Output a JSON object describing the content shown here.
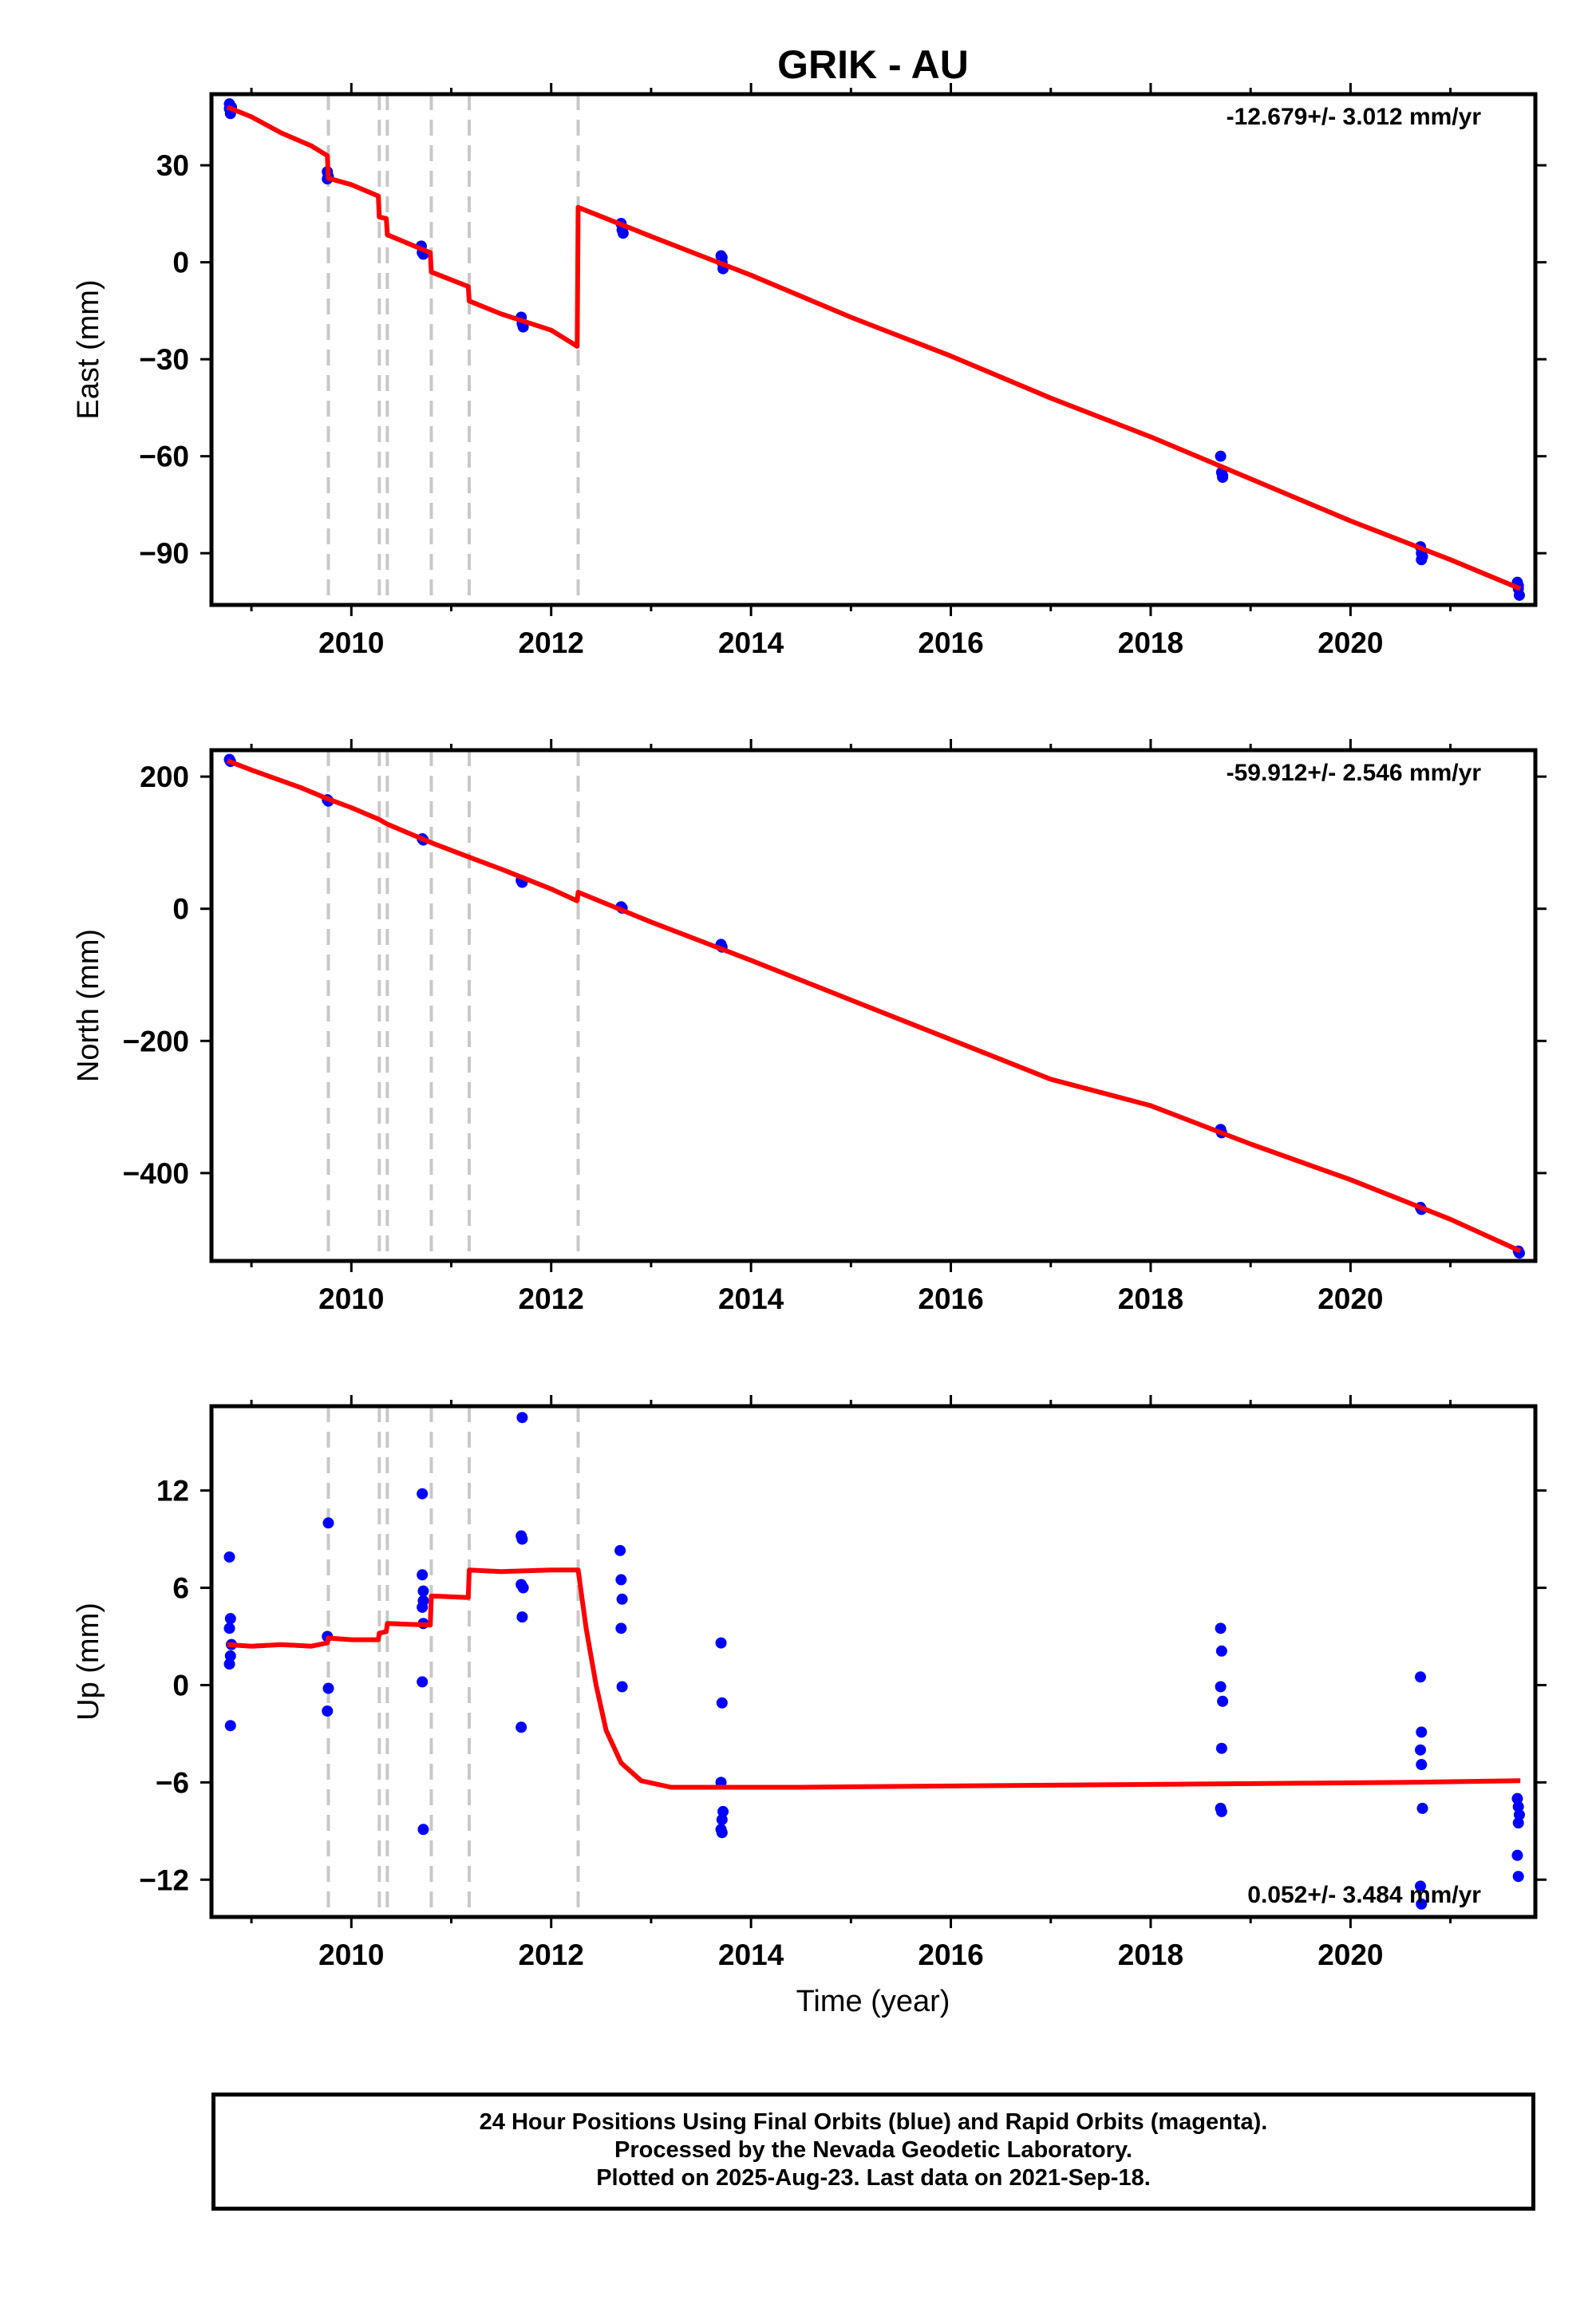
{
  "title": "GRIK - AU",
  "xlabel": "Time (year)",
  "footer": {
    "line1": "24 Hour Positions Using Final Orbits (blue) and Rapid Orbits (magenta).",
    "line2": "Processed by the Nevada Geodetic Laboratory.",
    "line3": "Plotted on 2025-Aug-23. Last data on 2021-Sep-18."
  },
  "colors": {
    "data": "#0000ff",
    "model": "#ff0000",
    "steps": "#c8c8c8"
  },
  "chart_data": [
    {
      "type": "scatter",
      "ylabel": "East (mm)",
      "rate": "-12.679+/- 3.012 mm/yr",
      "xlim": [
        2008.6,
        2021.85
      ],
      "ylim": [
        -106,
        52
      ],
      "yticks": [
        -90,
        -60,
        -30,
        0,
        30
      ],
      "xticks": [
        2010,
        2012,
        2014,
        2016,
        2018,
        2020
      ],
      "step_lines": [
        2009.77,
        2010.28,
        2010.36,
        2010.8,
        2011.18,
        2012.27
      ],
      "points": [
        [
          2008.78,
          49
        ],
        [
          2008.78,
          47.5
        ],
        [
          2008.79,
          46
        ],
        [
          2008.8,
          48
        ],
        [
          2009.76,
          28
        ],
        [
          2009.77,
          26.5
        ],
        [
          2009.76,
          25.8
        ],
        [
          2010.7,
          5
        ],
        [
          2010.71,
          3
        ],
        [
          2010.72,
          2.5
        ],
        [
          2011.7,
          -17
        ],
        [
          2011.71,
          -19
        ],
        [
          2011.72,
          -20
        ],
        [
          2012.7,
          12
        ],
        [
          2012.71,
          10
        ],
        [
          2012.72,
          9
        ],
        [
          2013.7,
          2
        ],
        [
          2013.71,
          0
        ],
        [
          2013.72,
          -2
        ],
        [
          2013.71,
          1.5
        ],
        [
          2018.7,
          -60
        ],
        [
          2018.71,
          -65
        ],
        [
          2018.72,
          -66
        ],
        [
          2018.72,
          -66.5
        ],
        [
          2020.7,
          -88
        ],
        [
          2020.71,
          -90
        ],
        [
          2020.72,
          -91
        ],
        [
          2020.71,
          -92
        ],
        [
          2021.67,
          -99
        ],
        [
          2021.68,
          -101
        ],
        [
          2021.69,
          -103
        ],
        [
          2021.68,
          -100
        ]
      ],
      "model": [
        [
          2008.76,
          48
        ],
        [
          2009.0,
          45
        ],
        [
          2009.3,
          40
        ],
        [
          2009.6,
          36
        ],
        [
          2009.76,
          33
        ],
        [
          2009.77,
          26
        ],
        [
          2010.0,
          24
        ],
        [
          2010.27,
          20.5
        ],
        [
          2010.28,
          14
        ],
        [
          2010.35,
          13.5
        ],
        [
          2010.36,
          8.5
        ],
        [
          2010.79,
          3
        ],
        [
          2010.8,
          -3
        ],
        [
          2011.17,
          -7.5
        ],
        [
          2011.18,
          -12
        ],
        [
          2011.5,
          -16
        ],
        [
          2012.0,
          -21
        ],
        [
          2012.26,
          -26
        ],
        [
          2012.27,
          17
        ],
        [
          2013.0,
          8
        ],
        [
          2013.5,
          2
        ],
        [
          2014.0,
          -4
        ],
        [
          2015.0,
          -17
        ],
        [
          2016.0,
          -29
        ],
        [
          2017.0,
          -42
        ],
        [
          2018.0,
          -54
        ],
        [
          2019.0,
          -67
        ],
        [
          2020.0,
          -80
        ],
        [
          2021.0,
          -92
        ],
        [
          2021.7,
          -101
        ]
      ]
    },
    {
      "type": "scatter",
      "ylabel": "North (mm)",
      "rate": "-59.912+/- 2.546 mm/yr",
      "xlim": [
        2008.6,
        2021.85
      ],
      "ylim": [
        -533,
        240
      ],
      "yticks": [
        -400,
        -200,
        0,
        200
      ],
      "xticks": [
        2010,
        2012,
        2014,
        2016,
        2018,
        2020
      ],
      "step_lines": [
        2009.77,
        2010.28,
        2010.36,
        2010.8,
        2011.18,
        2012.27
      ],
      "points": [
        [
          2008.78,
          226
        ],
        [
          2008.79,
          223
        ],
        [
          2009.76,
          165
        ],
        [
          2009.77,
          163
        ],
        [
          2010.71,
          106
        ],
        [
          2010.72,
          104
        ],
        [
          2011.7,
          43
        ],
        [
          2011.71,
          40
        ],
        [
          2012.7,
          3
        ],
        [
          2012.71,
          1
        ],
        [
          2013.7,
          -54
        ],
        [
          2013.71,
          -58
        ],
        [
          2018.7,
          -334
        ],
        [
          2018.71,
          -339
        ],
        [
          2020.7,
          -452
        ],
        [
          2020.71,
          -455
        ],
        [
          2021.68,
          -518
        ],
        [
          2021.69,
          -521
        ]
      ],
      "model": [
        [
          2008.76,
          224
        ],
        [
          2009.0,
          210
        ],
        [
          2009.5,
          183
        ],
        [
          2009.77,
          166
        ],
        [
          2010.0,
          153
        ],
        [
          2010.28,
          135
        ],
        [
          2010.36,
          128
        ],
        [
          2010.8,
          100
        ],
        [
          2011.18,
          78
        ],
        [
          2011.5,
          60
        ],
        [
          2012.0,
          30
        ],
        [
          2012.26,
          12
        ],
        [
          2012.27,
          25
        ],
        [
          2013.0,
          -20
        ],
        [
          2014.0,
          -78
        ],
        [
          2015.0,
          -138
        ],
        [
          2016.0,
          -198
        ],
        [
          2017.0,
          -258
        ],
        [
          2018.0,
          -298
        ],
        [
          2019.0,
          -356
        ],
        [
          2020.0,
          -410
        ],
        [
          2021.0,
          -470
        ],
        [
          2021.7,
          -518
        ]
      ]
    },
    {
      "type": "scatter",
      "ylabel": "Up (mm)",
      "rate": "0.052+/- 3.484 mm/yr",
      "xlim": [
        2008.6,
        2021.85
      ],
      "ylim": [
        -14.3,
        17.2
      ],
      "yticks": [
        -12,
        -6,
        0,
        6,
        12
      ],
      "xticks": [
        2010,
        2012,
        2014,
        2016,
        2018,
        2020
      ],
      "step_lines": [
        2009.77,
        2010.28,
        2010.36,
        2010.8,
        2011.18,
        2012.27
      ],
      "points": [
        [
          2008.78,
          7.9
        ],
        [
          2008.79,
          4.1
        ],
        [
          2008.78,
          3.5
        ],
        [
          2008.8,
          2.5
        ],
        [
          2008.79,
          1.8
        ],
        [
          2008.78,
          1.3
        ],
        [
          2008.79,
          -2.5
        ],
        [
          2009.77,
          10
        ],
        [
          2009.76,
          3
        ],
        [
          2009.77,
          -0.2
        ],
        [
          2009.76,
          -1.6
        ],
        [
          2010.71,
          11.8
        ],
        [
          2010.71,
          6.8
        ],
        [
          2010.72,
          5.8
        ],
        [
          2010.72,
          5.2
        ],
        [
          2010.71,
          4.8
        ],
        [
          2010.72,
          3.8
        ],
        [
          2010.71,
          0.2
        ],
        [
          2010.72,
          -8.9
        ],
        [
          2011.71,
          16.5
        ],
        [
          2011.7,
          9.2
        ],
        [
          2011.71,
          9
        ],
        [
          2011.7,
          6.2
        ],
        [
          2011.72,
          6
        ],
        [
          2011.71,
          4.2
        ],
        [
          2011.7,
          -2.6
        ],
        [
          2012.69,
          8.3
        ],
        [
          2012.7,
          6.5
        ],
        [
          2012.71,
          5.3
        ],
        [
          2012.7,
          3.5
        ],
        [
          2012.71,
          -0.1
        ],
        [
          2013.7,
          2.6
        ],
        [
          2013.71,
          -1.1
        ],
        [
          2013.7,
          -6
        ],
        [
          2013.72,
          -7.8
        ],
        [
          2013.71,
          -8.3
        ],
        [
          2013.7,
          -8.9
        ],
        [
          2013.71,
          -9.1
        ],
        [
          2018.7,
          3.5
        ],
        [
          2018.71,
          2.1
        ],
        [
          2018.7,
          -0.1
        ],
        [
          2018.72,
          -1
        ],
        [
          2018.71,
          -3.9
        ],
        [
          2018.7,
          -7.6
        ],
        [
          2018.71,
          -7.8
        ],
        [
          2020.7,
          0.5
        ],
        [
          2020.71,
          -2.9
        ],
        [
          2020.7,
          -4
        ],
        [
          2020.71,
          -4.9
        ],
        [
          2020.72,
          -7.6
        ],
        [
          2020.7,
          -12.4
        ],
        [
          2020.71,
          -13.5
        ],
        [
          2021.67,
          -7
        ],
        [
          2021.68,
          -7.5
        ],
        [
          2021.69,
          -8
        ],
        [
          2021.68,
          -8.5
        ],
        [
          2021.67,
          -10.5
        ],
        [
          2021.68,
          -11.8
        ]
      ],
      "model": [
        [
          2008.76,
          2.5
        ],
        [
          2009.0,
          2.4
        ],
        [
          2009.3,
          2.5
        ],
        [
          2009.6,
          2.4
        ],
        [
          2009.76,
          2.6
        ],
        [
          2009.77,
          2.9
        ],
        [
          2010.0,
          2.8
        ],
        [
          2010.27,
          2.8
        ],
        [
          2010.28,
          3.2
        ],
        [
          2010.35,
          3.3
        ],
        [
          2010.36,
          3.8
        ],
        [
          2010.79,
          3.7
        ],
        [
          2010.8,
          5.5
        ],
        [
          2011.17,
          5.4
        ],
        [
          2011.18,
          7.1
        ],
        [
          2011.5,
          7.0
        ],
        [
          2012.0,
          7.1
        ],
        [
          2012.27,
          7.1
        ],
        [
          2012.35,
          3.5
        ],
        [
          2012.45,
          0
        ],
        [
          2012.55,
          -2.8
        ],
        [
          2012.7,
          -4.8
        ],
        [
          2012.9,
          -5.9
        ],
        [
          2013.2,
          -6.3
        ],
        [
          2013.6,
          -6.3
        ],
        [
          2014.5,
          -6.3
        ],
        [
          2015.5,
          -6.25
        ],
        [
          2016.5,
          -6.2
        ],
        [
          2017.5,
          -6.15
        ],
        [
          2018.5,
          -6.1
        ],
        [
          2019.5,
          -6.05
        ],
        [
          2020.5,
          -6.0
        ],
        [
          2021.7,
          -5.9
        ]
      ]
    }
  ]
}
